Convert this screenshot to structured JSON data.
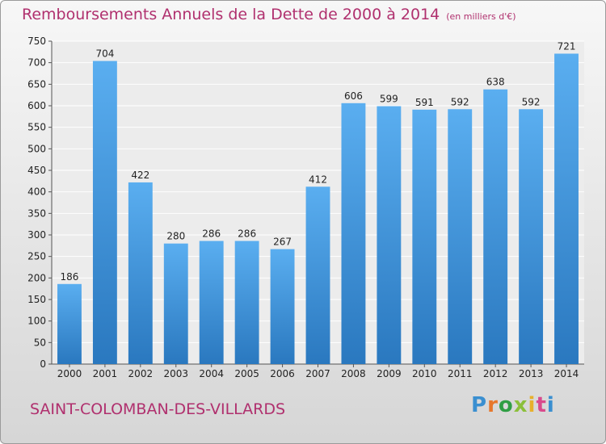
{
  "header": {
    "title": "Remboursements Annuels de la Dette de 2000 à 2014",
    "subtitle": "(en milliers d'€)"
  },
  "footer": {
    "city": "SAINT-COLOMBAN-DES-VILLARDS",
    "logo": [
      "P",
      "r",
      "o",
      "x",
      "i",
      "t",
      "i"
    ]
  },
  "colors": {
    "bar_top": "#5aaef0",
    "bar_bottom": "#2a78bf",
    "title": "#b0306e"
  },
  "chart_data": {
    "type": "bar",
    "categories": [
      "2000",
      "2001",
      "2002",
      "2003",
      "2004",
      "2005",
      "2006",
      "2007",
      "2008",
      "2009",
      "2010",
      "2011",
      "2012",
      "2013",
      "2014"
    ],
    "values": [
      186,
      704,
      422,
      280,
      286,
      286,
      267,
      412,
      606,
      599,
      591,
      592,
      638,
      592,
      721
    ],
    "ylim": [
      0,
      750
    ],
    "yticks": [
      0,
      50,
      100,
      150,
      200,
      250,
      300,
      350,
      400,
      450,
      500,
      550,
      600,
      650,
      700,
      750
    ],
    "grid": true
  }
}
